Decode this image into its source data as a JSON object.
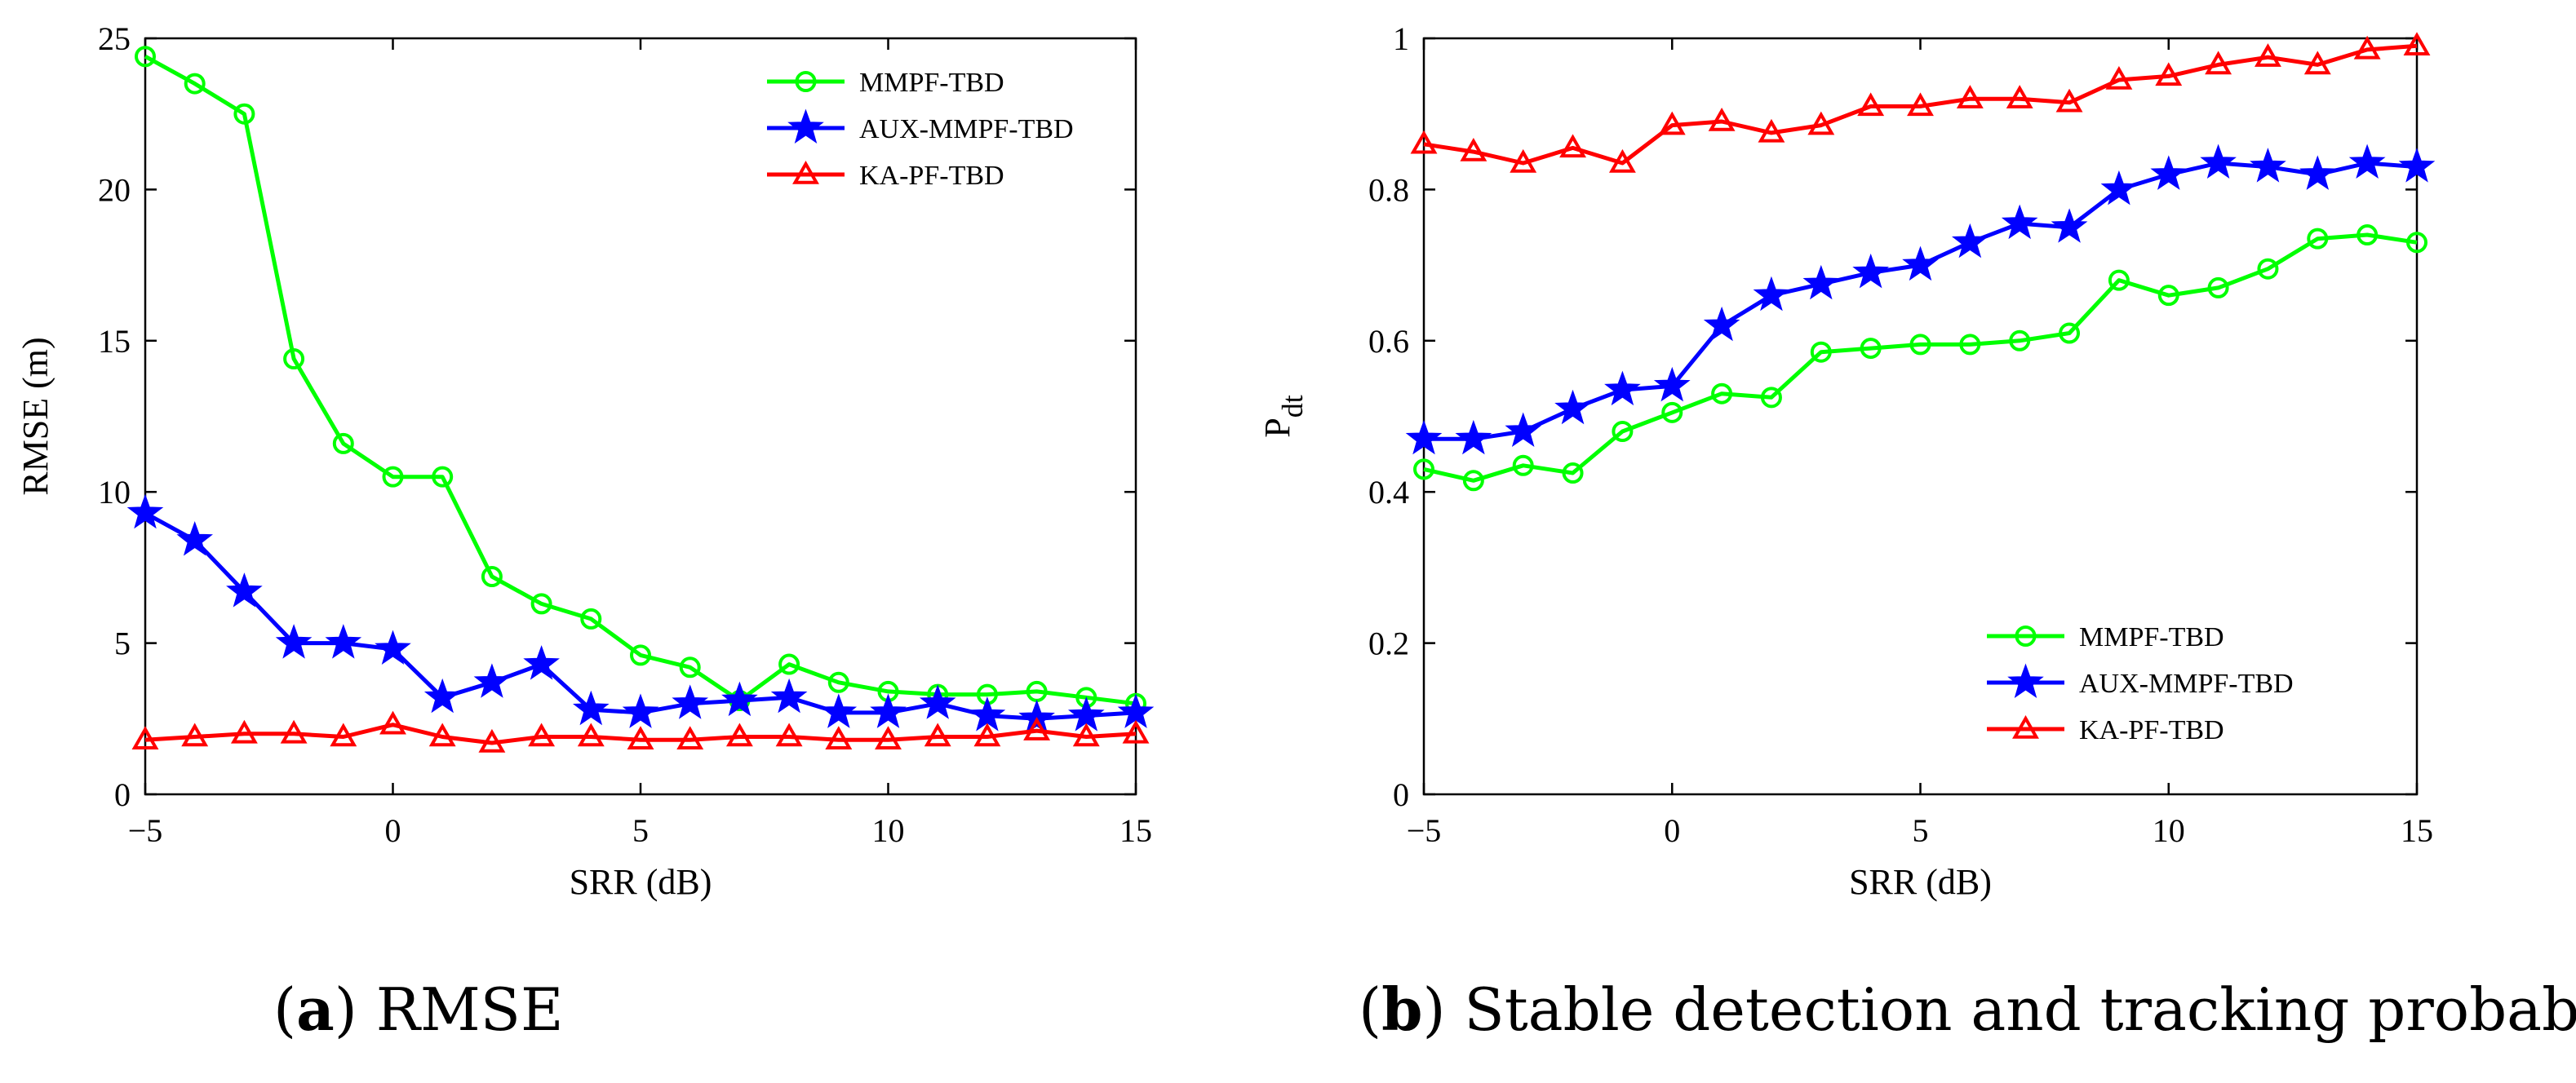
{
  "chart_data": [
    {
      "id": "a",
      "type": "line",
      "caption": {
        "label": "a",
        "text": "RMSE"
      },
      "xlabel": "SRR (dB)",
      "ylabel": "RMSE (m)",
      "xlim": [
        -5,
        15
      ],
      "ylim": [
        0,
        25
      ],
      "xticks": [
        -5,
        0,
        5,
        10,
        15
      ],
      "yticks": [
        0,
        5,
        10,
        15,
        20,
        25
      ],
      "grid": false,
      "legend": "top-right",
      "x": [
        -5,
        -4,
        -3,
        -2,
        -1,
        0,
        1,
        2,
        3,
        4,
        5,
        6,
        7,
        8,
        9,
        10,
        11,
        12,
        13,
        14,
        15
      ],
      "series": [
        {
          "name": "MMPF-TBD",
          "color": "#00ff00",
          "marker": "circle",
          "values": [
            24.4,
            23.5,
            22.5,
            14.4,
            11.6,
            10.5,
            10.5,
            7.2,
            6.3,
            5.8,
            4.6,
            4.2,
            3.1,
            4.3,
            3.7,
            3.4,
            3.3,
            3.3,
            3.4,
            3.2,
            3.0
          ]
        },
        {
          "name": "AUX-MMPF-TBD",
          "color": "#0000ff",
          "marker": "star",
          "values": [
            9.3,
            8.4,
            6.7,
            5.0,
            5.0,
            4.8,
            3.2,
            3.7,
            4.3,
            2.8,
            2.7,
            3.0,
            3.1,
            3.2,
            2.7,
            2.7,
            3.0,
            2.6,
            2.5,
            2.6,
            2.7
          ]
        },
        {
          "name": "KA-PF-TBD",
          "color": "#ff0000",
          "marker": "triangle",
          "values": [
            1.8,
            1.9,
            2.0,
            2.0,
            1.9,
            2.3,
            1.9,
            1.7,
            1.9,
            1.9,
            1.8,
            1.8,
            1.9,
            1.9,
            1.8,
            1.8,
            1.9,
            1.9,
            2.1,
            1.9,
            2.0
          ]
        }
      ]
    },
    {
      "id": "b",
      "type": "line",
      "caption": {
        "label": "b",
        "text": "Stable detection and tracking probability"
      },
      "xlabel": "SRR (dB)",
      "ylabel": "P",
      "ylabel_sub": "dt",
      "xlim": [
        -5,
        15
      ],
      "ylim": [
        0,
        1
      ],
      "xticks": [
        -5,
        0,
        5,
        10,
        15
      ],
      "yticks": [
        0,
        0.2,
        0.4,
        0.6,
        0.8,
        1
      ],
      "ytick_labels": [
        "0",
        "0.2",
        "0.4",
        "0.6",
        "0.8",
        "1"
      ],
      "grid": false,
      "legend": "bottom-right",
      "x": [
        -5,
        -4,
        -3,
        -2,
        -1,
        0,
        1,
        2,
        3,
        4,
        5,
        6,
        7,
        8,
        9,
        10,
        11,
        12,
        13,
        14,
        15
      ],
      "series": [
        {
          "name": "MMPF-TBD",
          "color": "#00ff00",
          "marker": "circle",
          "values": [
            0.43,
            0.415,
            0.435,
            0.425,
            0.48,
            0.505,
            0.53,
            0.525,
            0.585,
            0.59,
            0.595,
            0.595,
            0.6,
            0.61,
            0.68,
            0.66,
            0.67,
            0.695,
            0.735,
            0.74,
            0.73
          ]
        },
        {
          "name": "AUX-MMPF-TBD",
          "color": "#0000ff",
          "marker": "star",
          "values": [
            0.47,
            0.47,
            0.48,
            0.51,
            0.535,
            0.54,
            0.62,
            0.66,
            0.675,
            0.69,
            0.7,
            0.73,
            0.755,
            0.75,
            0.8,
            0.82,
            0.835,
            0.83,
            0.82,
            0.835,
            0.83
          ]
        },
        {
          "name": "KA-PF-TBD",
          "color": "#ff0000",
          "marker": "triangle",
          "values": [
            0.86,
            0.85,
            0.835,
            0.855,
            0.835,
            0.885,
            0.89,
            0.875,
            0.885,
            0.91,
            0.91,
            0.92,
            0.92,
            0.915,
            0.945,
            0.95,
            0.965,
            0.975,
            0.965,
            0.985,
            0.99
          ]
        }
      ]
    }
  ]
}
